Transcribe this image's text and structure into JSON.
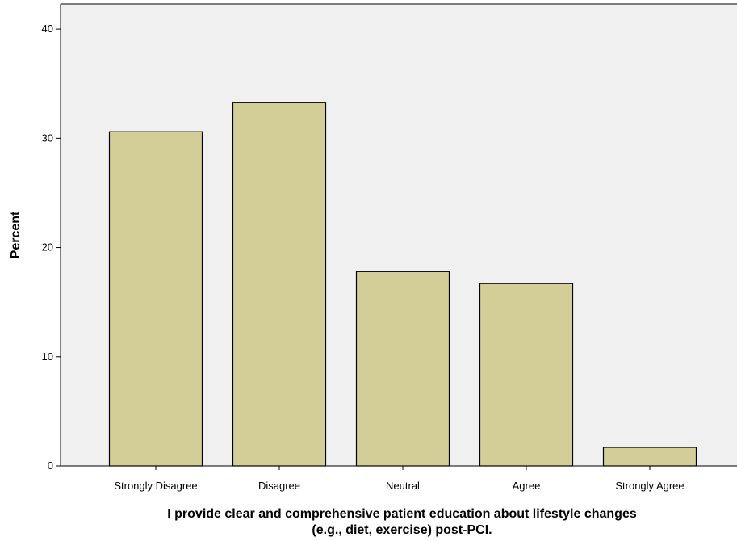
{
  "chart_data": {
    "type": "bar",
    "title": "",
    "xlabel_lines": [
      "I provide clear and comprehensive patient education about lifestyle changes",
      "(e.g., diet, exercise) post-PCI."
    ],
    "ylabel": "Percent",
    "categories": [
      "Strongly Disagree",
      "Disagree",
      "Neutral",
      "Agree",
      "Strongly Agree"
    ],
    "values": [
      30.6,
      33.3,
      17.8,
      16.7,
      1.7
    ],
    "yticks": [
      0,
      10,
      20,
      30,
      40
    ],
    "ylim": [
      0,
      42.3
    ],
    "grid": false,
    "colors": {
      "plot_background": "#f0f0f0",
      "bar_fill": "#d3ce97",
      "bar_stroke": "#000000",
      "axis": "#000000"
    }
  }
}
